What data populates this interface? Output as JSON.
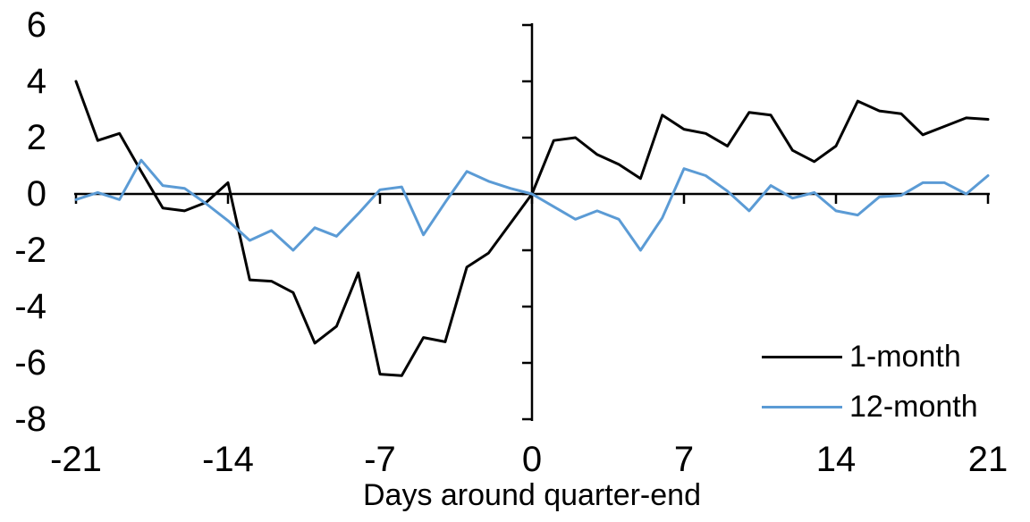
{
  "chart_data": {
    "type": "line",
    "title": "",
    "xlabel": "Days around quarter-end",
    "ylabel": "",
    "xlim": [
      -21,
      21
    ],
    "ylim": [
      -8,
      6
    ],
    "grid": false,
    "legend_position": "inside-right-lower",
    "x_ticks": [
      "-21",
      "-14",
      "-7",
      "0",
      "7",
      "14",
      "21"
    ],
    "y_ticks": [
      "6",
      "4",
      "2",
      "0",
      "-2",
      "-4",
      "-6",
      "-8"
    ],
    "x": [
      -21,
      -20,
      -19,
      -18,
      -17,
      -16,
      -15,
      -14,
      -13,
      -12,
      -11,
      -10,
      -9,
      -8,
      -7,
      -6,
      -5,
      -4,
      -3,
      -2,
      -1,
      0,
      1,
      2,
      3,
      4,
      5,
      6,
      7,
      8,
      9,
      10,
      11,
      12,
      13,
      14,
      15,
      16,
      17,
      18,
      19,
      20,
      21
    ],
    "series": [
      {
        "name": "1-month",
        "color": "#000000",
        "values": [
          4.0,
          1.9,
          2.15,
          0.8,
          -0.5,
          -0.6,
          -0.3,
          0.4,
          -3.05,
          -3.1,
          -3.5,
          -5.3,
          -4.7,
          -2.8,
          -6.4,
          -6.45,
          -5.1,
          -5.25,
          -2.6,
          -2.1,
          -1.05,
          0.0,
          1.9,
          2.0,
          1.4,
          1.05,
          0.55,
          2.8,
          2.3,
          2.15,
          1.7,
          2.9,
          2.8,
          1.55,
          1.15,
          1.7,
          3.3,
          2.95,
          2.85,
          2.1,
          2.4,
          2.7,
          2.65
        ]
      },
      {
        "name": "12-month",
        "color": "#5B9BD5",
        "values": [
          -0.2,
          0.05,
          -0.2,
          1.2,
          0.3,
          0.2,
          -0.35,
          -0.95,
          -1.65,
          -1.3,
          -2.0,
          -1.2,
          -1.5,
          -0.7,
          0.15,
          0.25,
          -1.45,
          -0.3,
          0.8,
          0.45,
          0.2,
          0.0,
          -0.45,
          -0.9,
          -0.6,
          -0.9,
          -2.0,
          -0.85,
          0.9,
          0.65,
          0.1,
          -0.6,
          0.3,
          -0.15,
          0.05,
          -0.6,
          -0.75,
          -0.1,
          -0.05,
          0.4,
          0.4,
          0.0,
          0.65
        ]
      }
    ]
  }
}
